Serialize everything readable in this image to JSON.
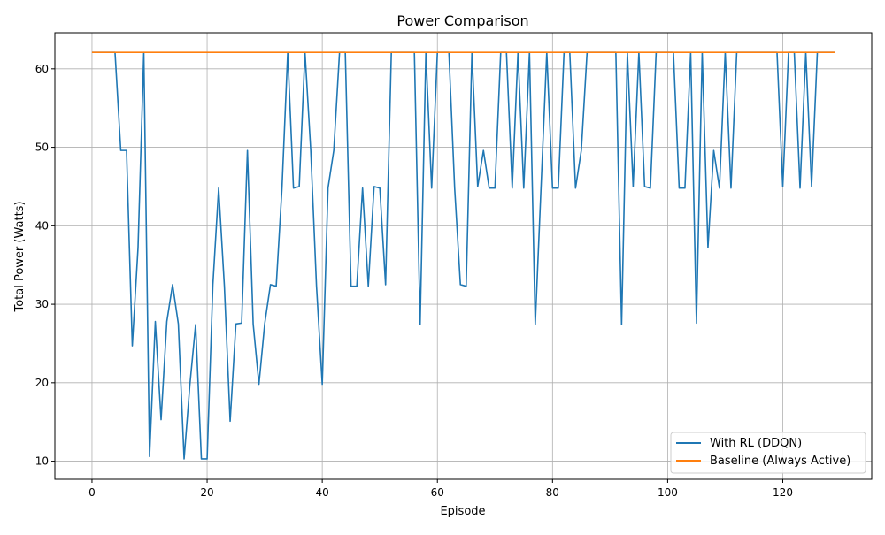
{
  "chart_data": {
    "type": "line",
    "title": "Power Comparison",
    "xlabel": "Episode",
    "ylabel": "Total Power (Watts)",
    "xlim": [
      -6.45,
      135.45
    ],
    "ylim": [
      7.7,
      64.6
    ],
    "xticks": [
      0,
      20,
      40,
      60,
      80,
      100,
      120
    ],
    "yticks": [
      10,
      20,
      30,
      40,
      50,
      60
    ],
    "grid": true,
    "legend_position": "lower right",
    "series": [
      {
        "name": "With RL (DDQN)",
        "color": "#1f77b4",
        "x": [
          0,
          1,
          2,
          3,
          4,
          5,
          6,
          7,
          8,
          9,
          10,
          11,
          12,
          13,
          14,
          15,
          16,
          17,
          18,
          19,
          20,
          21,
          22,
          23,
          24,
          25,
          26,
          27,
          28,
          29,
          30,
          31,
          32,
          33,
          34,
          35,
          36,
          37,
          38,
          39,
          40,
          41,
          42,
          43,
          44,
          45,
          46,
          47,
          48,
          49,
          50,
          51,
          52,
          53,
          54,
          55,
          56,
          57,
          58,
          59,
          60,
          61,
          62,
          63,
          64,
          65,
          66,
          67,
          68,
          69,
          70,
          71,
          72,
          73,
          74,
          75,
          76,
          77,
          78,
          79,
          80,
          81,
          82,
          83,
          84,
          85,
          86,
          87,
          88,
          89,
          90,
          91,
          92,
          93,
          94,
          95,
          96,
          97,
          98,
          99,
          100,
          101,
          102,
          103,
          104,
          105,
          106,
          107,
          108,
          109,
          110,
          111,
          112,
          113,
          114,
          115,
          116,
          117,
          118,
          119,
          120,
          121,
          122,
          123,
          124,
          125,
          126,
          127,
          128,
          129
        ],
        "y": [
          62.1,
          62.1,
          62.1,
          62.1,
          62.1,
          49.6,
          49.6,
          24.7,
          37.2,
          62.1,
          10.6,
          27.8,
          15.3,
          27.8,
          32.5,
          27.5,
          10.3,
          19.7,
          27.4,
          10.3,
          10.3,
          32.5,
          44.8,
          32.3,
          15.1,
          27.5,
          27.6,
          49.6,
          27.5,
          19.8,
          27.5,
          32.5,
          32.3,
          44.8,
          62.1,
          44.8,
          45.0,
          62.1,
          49.6,
          32.3,
          19.8,
          44.8,
          49.6,
          62.1,
          62.1,
          32.3,
          32.3,
          44.8,
          32.3,
          45.0,
          44.8,
          32.5,
          62.1,
          62.1,
          62.1,
          62.1,
          62.1,
          27.4,
          62.1,
          44.8,
          62.1,
          62.1,
          62.1,
          44.8,
          32.5,
          32.3,
          62.1,
          45.0,
          49.6,
          44.8,
          44.8,
          62.1,
          62.1,
          44.8,
          62.1,
          44.8,
          62.1,
          27.4,
          44.8,
          62.1,
          44.8,
          44.8,
          62.1,
          62.1,
          44.8,
          49.6,
          62.1,
          62.1,
          62.1,
          62.1,
          62.1,
          62.1,
          27.4,
          62.1,
          45.0,
          62.1,
          45.0,
          44.8,
          62.1,
          62.1,
          62.1,
          62.1,
          44.8,
          44.8,
          62.1,
          27.6,
          62.1,
          37.2,
          49.6,
          44.8,
          62.1,
          44.8,
          62.1,
          62.1,
          62.1,
          62.1,
          62.1,
          62.1,
          62.1,
          62.1,
          45.0,
          62.1,
          62.1,
          44.8,
          62.1,
          45.0,
          62.1,
          62.1,
          62.1,
          62.1
        ]
      },
      {
        "name": "Baseline (Always Active)",
        "color": "#ff7f0e",
        "x": [
          0,
          129
        ],
        "y": [
          62.1,
          62.1
        ]
      }
    ]
  }
}
